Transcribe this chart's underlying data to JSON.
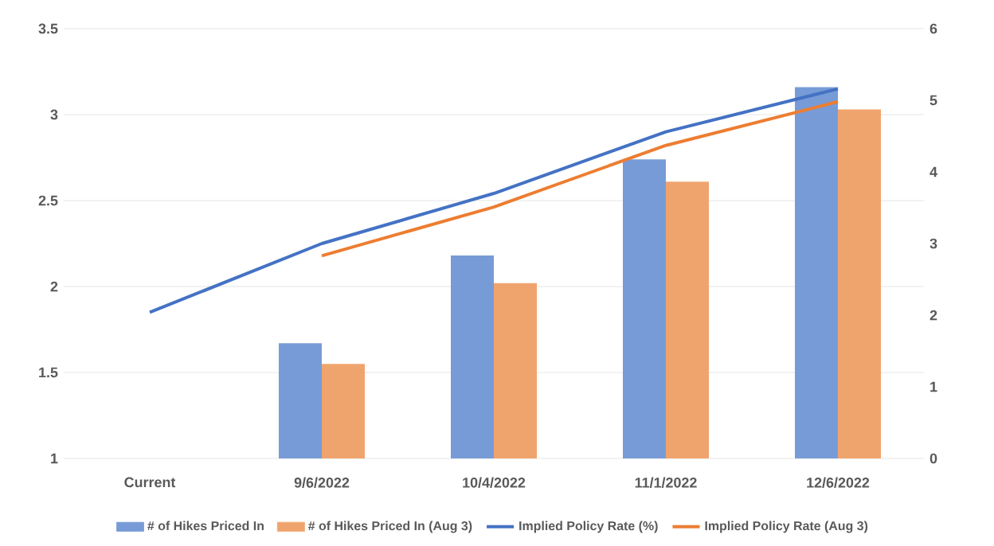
{
  "chart_data": {
    "type": "bar",
    "categories": [
      "Current",
      "9/6/2022",
      "10/4/2022",
      "11/1/2022",
      "12/6/2022"
    ],
    "series": [
      {
        "name": "# of Hikes Priced In",
        "color": "#779bd6",
        "values": [
          null,
          1.67,
          2.18,
          2.74,
          3.16
        ]
      },
      {
        "name": "# of Hikes Priced In (Aug 3)",
        "color": "#f0a46d",
        "values": [
          null,
          1.55,
          2.02,
          2.61,
          3.03
        ]
      },
      {
        "name": "Implied Policy Rate (%)",
        "type": "line",
        "axis": "y2",
        "color": "#4472c4",
        "values": [
          2.04,
          3.0,
          3.7,
          4.56,
          5.16
        ]
      },
      {
        "name": "Implied Policy Rate (Aug 3)",
        "type": "line",
        "axis": "y2",
        "color": "#ed7d31",
        "values": [
          null,
          2.83,
          3.51,
          4.37,
          4.98
        ]
      }
    ],
    "ylim": [
      1,
      3.5
    ],
    "yticks": [
      1,
      1.5,
      2,
      2.5,
      3,
      3.5
    ],
    "y2lim": [
      0,
      6
    ],
    "y2ticks": [
      0,
      1,
      2,
      3,
      4,
      5,
      6
    ],
    "grid": "y",
    "legend": "bottom",
    "marker": "none",
    "line_style": "solid"
  }
}
